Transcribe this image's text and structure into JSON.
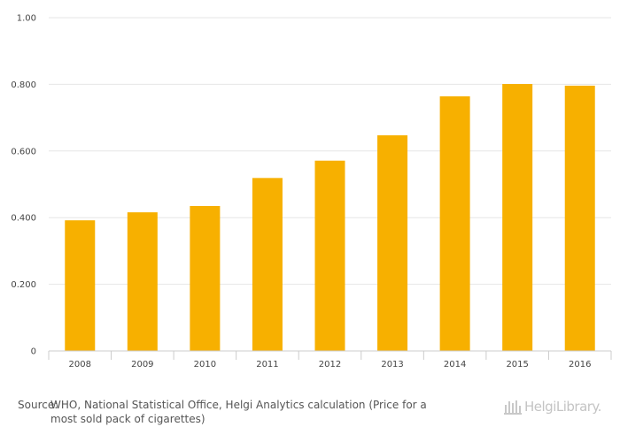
{
  "chart_data": {
    "type": "bar",
    "title": "",
    "xlabel": "",
    "ylabel": "",
    "categories": [
      "2008",
      "2009",
      "2010",
      "2011",
      "2012",
      "2013",
      "2014",
      "2015",
      "2016"
    ],
    "values": [
      0.392,
      0.416,
      0.435,
      0.519,
      0.571,
      0.647,
      0.764,
      0.801,
      0.796
    ],
    "ylim": [
      0,
      1.0
    ],
    "y_ticks": [
      0,
      0.2,
      0.4,
      0.6,
      0.8,
      1.0
    ],
    "y_tick_labels": [
      "0",
      "0.200",
      "0.400",
      "0.600",
      "0.800",
      "1.00"
    ],
    "bar_color": "#f7b000",
    "grid": true,
    "legend": "none"
  },
  "source": {
    "label": "Source:",
    "line1": "WHO, National Statistical Office, Helgi Analytics calculation (Price for a",
    "line2": "most sold pack of cigarettes)"
  },
  "logo": {
    "text": "HelgiLibrary.",
    "icon": "library-columns-icon",
    "color": "#c4c4c4"
  }
}
